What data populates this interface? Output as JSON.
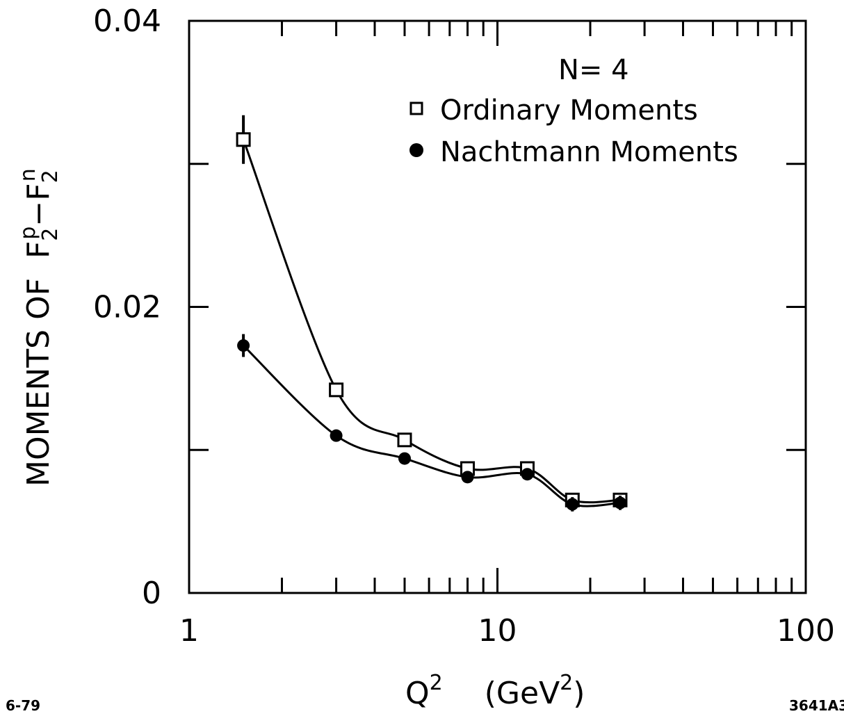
{
  "chart_data": {
    "type": "line",
    "x_scale": "log",
    "xlim": [
      1,
      100
    ],
    "ylim": [
      0,
      0.04
    ],
    "grid": false,
    "legend_position": "top-right",
    "xlabel": {
      "main": "Q",
      "main_sup": "2",
      "unit": "(GeV",
      "unit_sup": "2",
      "unit_close": ")"
    },
    "ylabel": {
      "prefix": "MOMENTS OF  F",
      "sub1": "2",
      "sup1": "p",
      "minus": "−F",
      "sub2": "2",
      "sup2": "n"
    },
    "x_tick_labels": [
      {
        "value": 1,
        "label": "1"
      },
      {
        "value": 10,
        "label": "10"
      },
      {
        "value": 100,
        "label": "100"
      }
    ],
    "y_tick_labels": [
      {
        "value": 0,
        "label": "0"
      },
      {
        "value": 0.02,
        "label": "0.02"
      },
      {
        "value": 0.04,
        "label": "0.04"
      }
    ],
    "legend_title": "N= 4",
    "series": [
      {
        "name": "Ordinary Moments",
        "marker": "open-square",
        "x": [
          1.5,
          3,
          5,
          8,
          12.5,
          17.5,
          25
        ],
        "y": [
          0.0317,
          0.0142,
          0.0107,
          0.0087,
          0.0087,
          0.0065,
          0.0065
        ],
        "yerr": [
          0.0017,
          0.0004,
          0.0003,
          0.0003,
          0.0003,
          0.0004,
          0.0005
        ]
      },
      {
        "name": "Nachtmann Moments",
        "marker": "filled-circle",
        "x": [
          1.5,
          3,
          5,
          8,
          12.5,
          17.5,
          25
        ],
        "y": [
          0.0173,
          0.011,
          0.0094,
          0.0081,
          0.0083,
          0.0062,
          0.0063
        ],
        "yerr": [
          0.0008,
          0.0003,
          0.0003,
          0.0003,
          0.0003,
          0.0005,
          0.0005
        ]
      }
    ]
  },
  "notes": {
    "bottom_left": "6-79",
    "bottom_right": "3641A3"
  }
}
